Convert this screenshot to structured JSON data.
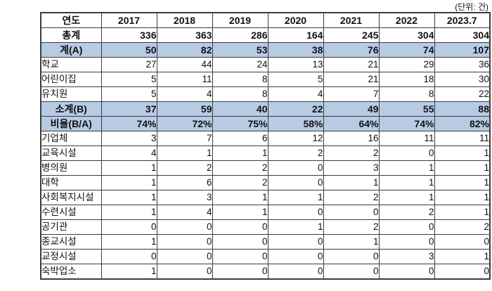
{
  "unit_label": "(단위: 건)",
  "colors": {
    "highlight": "#b7cbe4",
    "border": "#3c3c3c"
  },
  "table": {
    "header": {
      "label": "연도",
      "years": [
        "2017",
        "2018",
        "2019",
        "2020",
        "2021",
        "2022",
        "2023.7"
      ]
    },
    "rows": [
      {
        "label": "총계",
        "values": [
          "336",
          "363",
          "286",
          "164",
          "245",
          "304",
          "304"
        ],
        "summary": true,
        "highlight": false
      },
      {
        "label": "계(A)",
        "values": [
          "50",
          "82",
          "53",
          "38",
          "76",
          "74",
          "107"
        ],
        "summary": true,
        "highlight": true
      },
      {
        "label": "학교",
        "values": [
          "27",
          "44",
          "24",
          "13",
          "21",
          "29",
          "36"
        ],
        "summary": false,
        "highlight": false
      },
      {
        "label": "어린이집",
        "values": [
          "5",
          "11",
          "8",
          "5",
          "21",
          "18",
          "30"
        ],
        "summary": false,
        "highlight": false
      },
      {
        "label": "유치원",
        "values": [
          "5",
          "4",
          "8",
          "4",
          "7",
          "8",
          "22"
        ],
        "summary": false,
        "highlight": false
      },
      {
        "label": "소계(B)",
        "values": [
          "37",
          "59",
          "40",
          "22",
          "49",
          "55",
          "88"
        ],
        "summary": true,
        "highlight": true
      },
      {
        "label": "비율(B/A)",
        "values": [
          "74%",
          "72%",
          "75%",
          "58%",
          "64%",
          "74%",
          "82%"
        ],
        "summary": true,
        "highlight": true
      },
      {
        "label": "기업체",
        "values": [
          "3",
          "7",
          "6",
          "12",
          "16",
          "11",
          "11"
        ],
        "summary": false,
        "highlight": false
      },
      {
        "label": "교육시설",
        "values": [
          "4",
          "1",
          "1",
          "2",
          "2",
          "0",
          "1"
        ],
        "summary": false,
        "highlight": false
      },
      {
        "label": "병의원",
        "values": [
          "1",
          "2",
          "2",
          "0",
          "3",
          "1",
          "1"
        ],
        "summary": false,
        "highlight": false
      },
      {
        "label": "대학",
        "values": [
          "1",
          "6",
          "2",
          "0",
          "1",
          "1",
          "1"
        ],
        "summary": false,
        "highlight": false
      },
      {
        "label": "사회복지시설",
        "values": [
          "1",
          "3",
          "1",
          "1",
          "2",
          "1",
          "1"
        ],
        "summary": false,
        "highlight": false
      },
      {
        "label": "수련시설",
        "values": [
          "1",
          "4",
          "1",
          "0",
          "0",
          "2",
          "1"
        ],
        "summary": false,
        "highlight": false
      },
      {
        "label": "공기관",
        "values": [
          "0",
          "0",
          "0",
          "1",
          "2",
          "0",
          "2"
        ],
        "summary": false,
        "highlight": false
      },
      {
        "label": "종교시설",
        "values": [
          "1",
          "0",
          "0",
          "0",
          "1",
          "0",
          "0"
        ],
        "summary": false,
        "highlight": false
      },
      {
        "label": "교정시설",
        "values": [
          "0",
          "0",
          "0",
          "0",
          "0",
          "3",
          "1"
        ],
        "summary": false,
        "highlight": false
      },
      {
        "label": "숙박업소",
        "values": [
          "1",
          "0",
          "0",
          "0",
          "0",
          "0",
          "0"
        ],
        "summary": false,
        "highlight": false
      }
    ]
  }
}
